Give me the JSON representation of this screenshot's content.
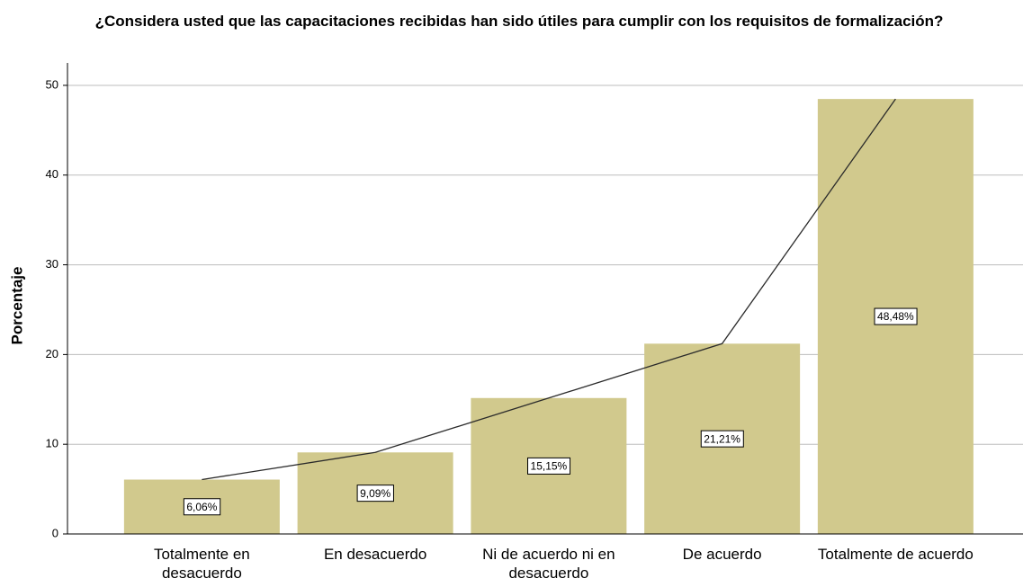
{
  "chart_data": {
    "type": "bar",
    "title": "¿Considera usted que las capacitaciones recibidas han sido útiles para cumplir con los requisitos de formalización?",
    "y_label": "Porcentaje",
    "categories": [
      "Totalmente en desacuerdo",
      "En desacuerdo",
      "Ni de acuerdo ni en desacuerdo",
      "De acuerdo",
      "Totalmente de acuerdo"
    ],
    "values": [
      6.06,
      9.09,
      15.15,
      21.21,
      48.48
    ],
    "value_labels": [
      "6,06%",
      "9,09%",
      "15,15%",
      "21,21%",
      "48,48%"
    ],
    "color": "#d1c98d",
    "line_color": "#2b2b2b",
    "ylim": [
      0,
      52.5
    ],
    "yticks": [
      0,
      10,
      20,
      30,
      40,
      50
    ],
    "grid": true
  }
}
